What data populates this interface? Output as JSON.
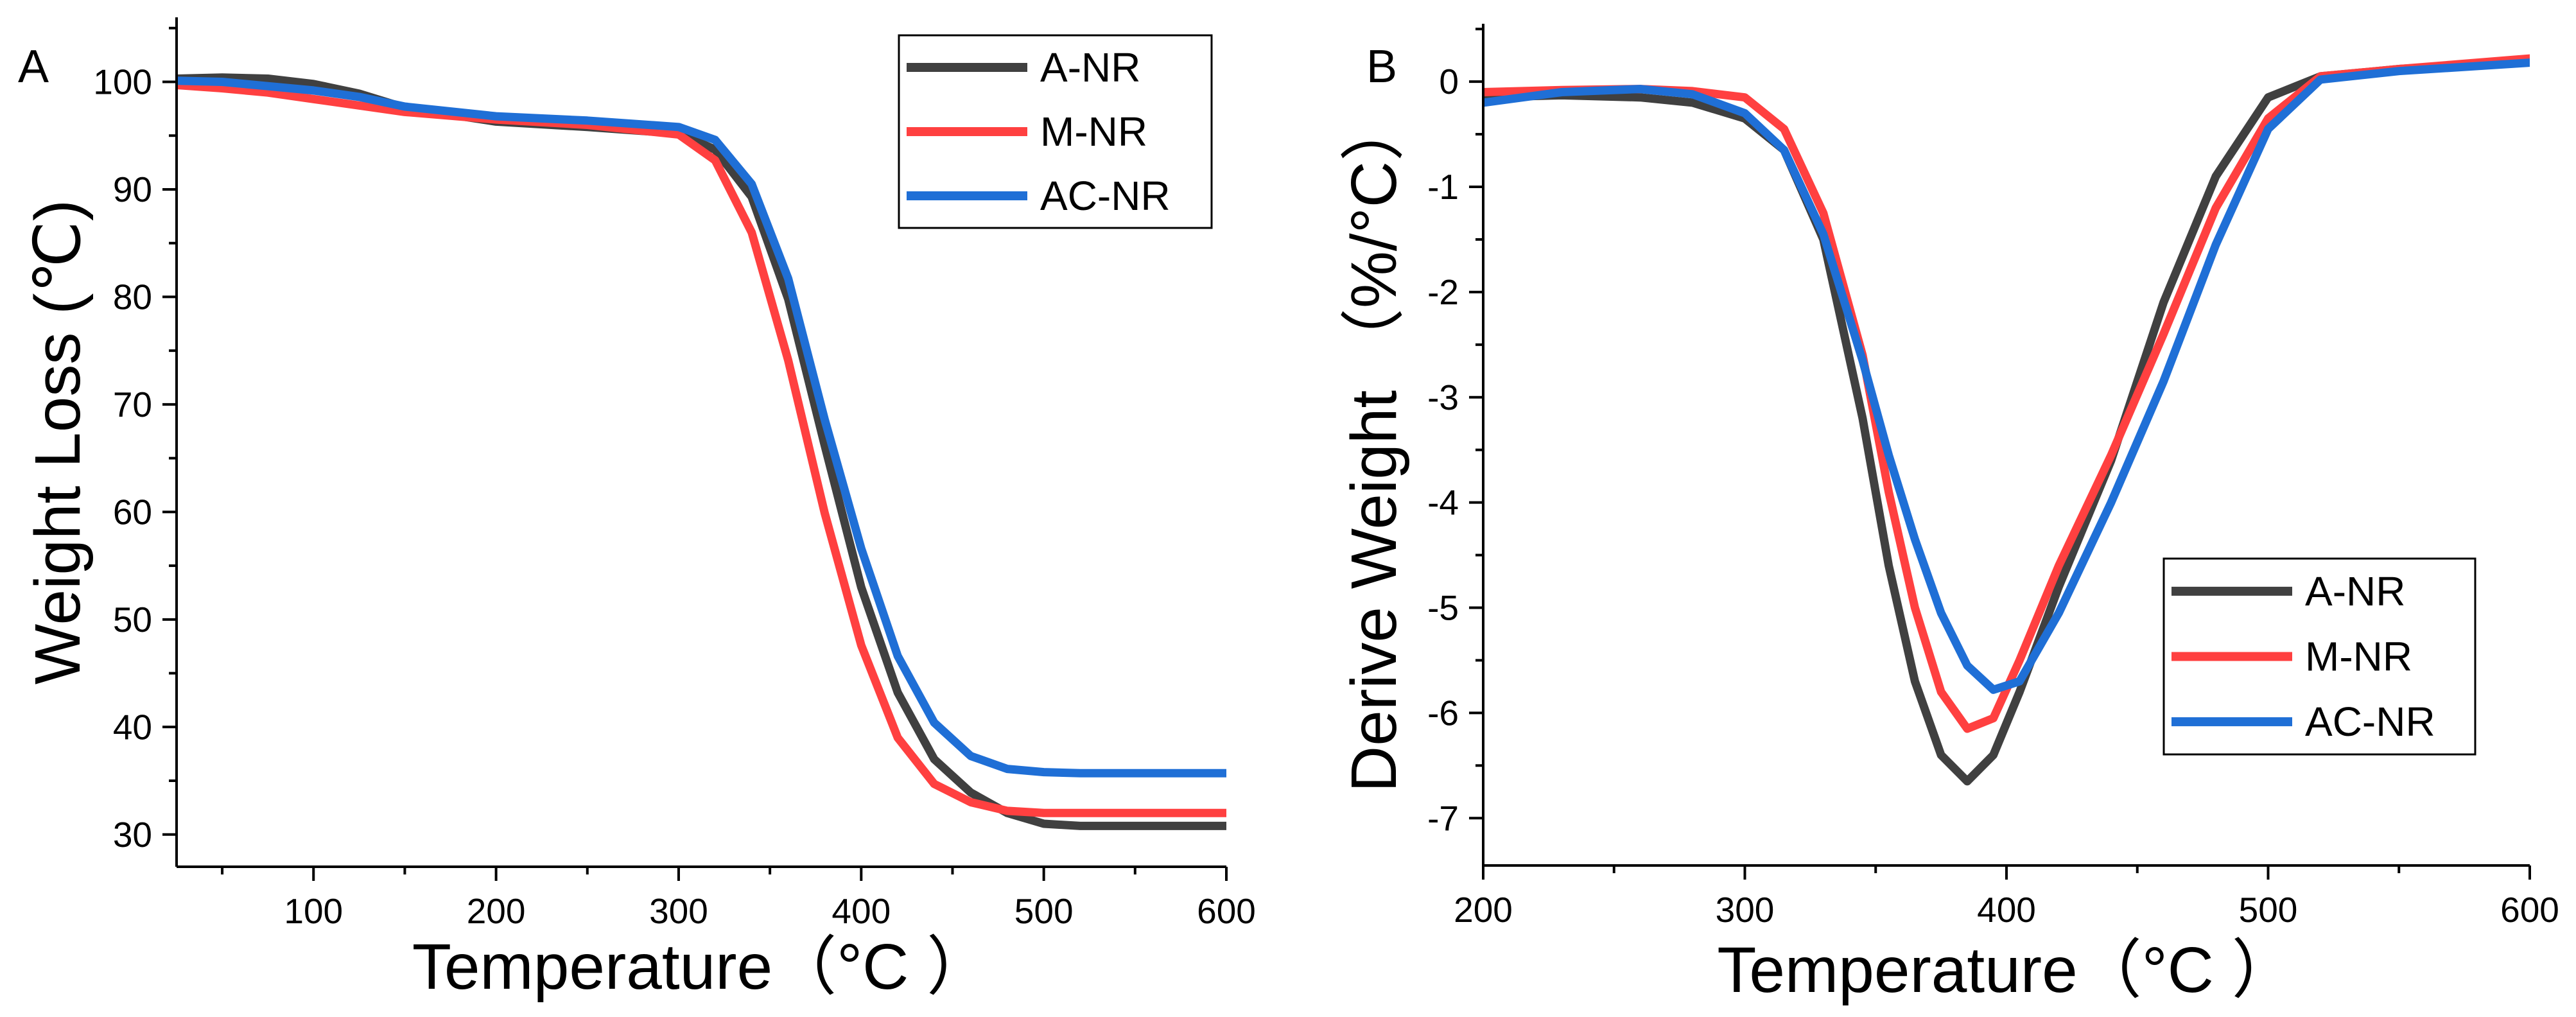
{
  "chart_data": [
    {
      "type": "line",
      "panel_label": "A",
      "title": "",
      "xlabel": "Temperature（°C ）",
      "ylabel": "Weight Loss (℃)",
      "xlim": [
        25,
        600
      ],
      "ylim": [
        27,
        106
      ],
      "xticks": [
        100,
        200,
        300,
        400,
        500,
        600
      ],
      "yticks": [
        30,
        40,
        50,
        60,
        70,
        80,
        90,
        100
      ],
      "legend_position": "top-right",
      "series": [
        {
          "name": "A-NR",
          "color": "#404040",
          "x": [
            25,
            50,
            75,
            100,
            125,
            150,
            200,
            250,
            300,
            320,
            340,
            360,
            380,
            400,
            420,
            440,
            460,
            480,
            500,
            520,
            550,
            600
          ],
          "y": [
            100.3,
            100.4,
            100.3,
            99.8,
            98.9,
            97.6,
            96.3,
            95.8,
            95.2,
            93.7,
            89.3,
            79.8,
            66.2,
            53.0,
            43.2,
            37.0,
            33.9,
            32.0,
            31.0,
            30.8,
            30.8,
            30.8
          ]
        },
        {
          "name": "M-NR",
          "color": "#ff4040",
          "x": [
            25,
            50,
            75,
            100,
            125,
            150,
            200,
            250,
            300,
            320,
            340,
            360,
            380,
            400,
            420,
            440,
            460,
            480,
            500,
            520,
            550,
            600
          ],
          "y": [
            99.7,
            99.4,
            99.0,
            98.4,
            97.8,
            97.2,
            96.5,
            96.0,
            95.1,
            92.7,
            86.0,
            74.1,
            59.9,
            47.6,
            39.0,
            34.7,
            33.0,
            32.2,
            32.0,
            32.0,
            32.0,
            32.0
          ]
        },
        {
          "name": "AC-NR",
          "color": "#1f6fd6",
          "x": [
            25,
            50,
            75,
            100,
            125,
            150,
            200,
            250,
            300,
            320,
            340,
            360,
            380,
            400,
            420,
            440,
            460,
            480,
            500,
            520,
            550,
            600
          ],
          "y": [
            100.1,
            100.0,
            99.6,
            99.2,
            98.6,
            97.7,
            96.8,
            96.4,
            95.8,
            94.6,
            90.5,
            81.7,
            68.6,
            56.6,
            46.6,
            40.4,
            37.3,
            36.1,
            35.8,
            35.7,
            35.7,
            35.7
          ]
        }
      ]
    },
    {
      "type": "line",
      "panel_label": "B",
      "title": "",
      "xlabel": "Temperature（°C ）",
      "ylabel": "Derive Weight （%/°C）",
      "xlim": [
        200,
        600
      ],
      "ylim": [
        -7.45,
        0.55
      ],
      "xticks": [
        200,
        300,
        400,
        500,
        600
      ],
      "yticks": [
        0,
        -1,
        -2,
        -3,
        -4,
        -5,
        -6,
        -7
      ],
      "legend_position": "bottom-right",
      "series": [
        {
          "name": "A-NR",
          "color": "#404040",
          "x": [
            200,
            230,
            260,
            280,
            300,
            315,
            330,
            345,
            355,
            365,
            375,
            385,
            395,
            405,
            420,
            440,
            460,
            480,
            500,
            520,
            550,
            600
          ],
          "y": [
            -0.15,
            -0.13,
            -0.15,
            -0.2,
            -0.35,
            -0.65,
            -1.5,
            -3.2,
            -4.6,
            -5.7,
            -6.4,
            -6.65,
            -6.4,
            -5.8,
            -4.8,
            -3.6,
            -2.1,
            -0.9,
            -0.15,
            0.05,
            0.12,
            0.2
          ]
        },
        {
          "name": "M-NR",
          "color": "#ff4040",
          "x": [
            200,
            230,
            260,
            280,
            300,
            315,
            330,
            345,
            355,
            365,
            375,
            385,
            395,
            405,
            420,
            440,
            460,
            480,
            500,
            520,
            550,
            600
          ],
          "y": [
            -0.1,
            -0.08,
            -0.07,
            -0.09,
            -0.15,
            -0.45,
            -1.25,
            -2.6,
            -3.9,
            -5.0,
            -5.8,
            -6.15,
            -6.05,
            -5.5,
            -4.6,
            -3.55,
            -2.4,
            -1.2,
            -0.35,
            0.05,
            0.12,
            0.22
          ]
        },
        {
          "name": "AC-NR",
          "color": "#1f6fd6",
          "x": [
            200,
            230,
            260,
            280,
            300,
            315,
            330,
            345,
            355,
            365,
            375,
            385,
            395,
            405,
            420,
            440,
            460,
            480,
            500,
            520,
            550,
            600
          ],
          "y": [
            -0.2,
            -0.1,
            -0.07,
            -0.12,
            -0.3,
            -0.65,
            -1.45,
            -2.65,
            -3.55,
            -4.35,
            -5.05,
            -5.55,
            -5.78,
            -5.7,
            -5.05,
            -4.0,
            -2.85,
            -1.55,
            -0.45,
            0.02,
            0.1,
            0.18
          ]
        }
      ]
    }
  ]
}
